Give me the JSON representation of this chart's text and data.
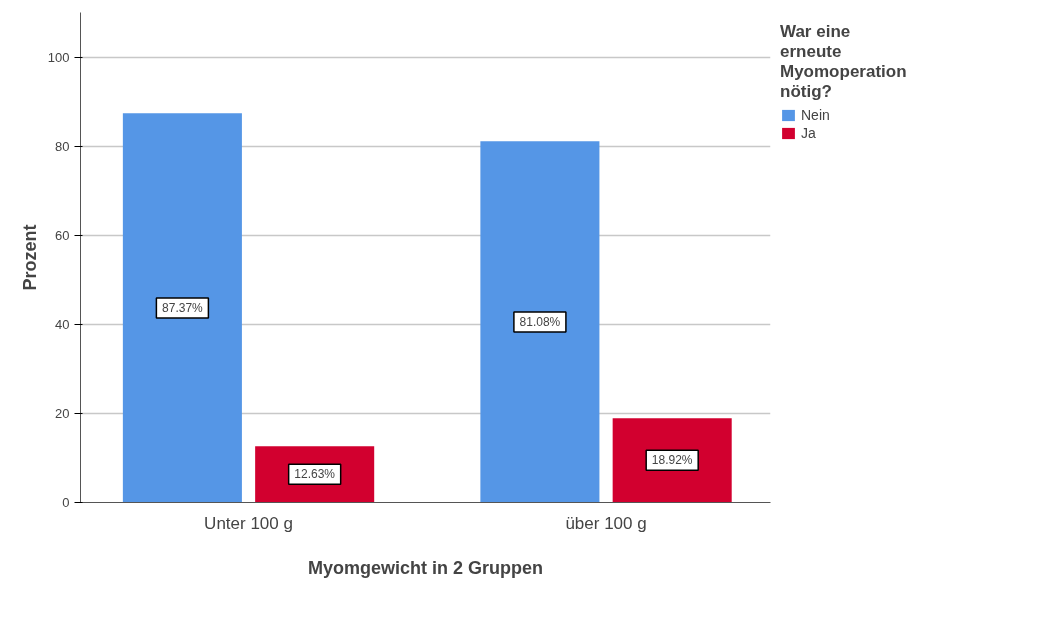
{
  "chart_data": {
    "type": "bar",
    "xlabel": "Myomgewicht in 2 Gruppen",
    "ylabel": "Prozent",
    "legend_title": "War eine erneute Myomoperation nötig?",
    "categories": [
      "Unter 100 g",
      "über 100 g"
    ],
    "series": [
      {
        "name": "Nein",
        "color": "#5596e6",
        "values": [
          87.37,
          81.08
        ],
        "value_labels": [
          "87.37%",
          "81.08%"
        ]
      },
      {
        "name": "Ja",
        "color": "#d2002f",
        "values": [
          12.63,
          18.92
        ],
        "value_labels": [
          "12.63%",
          "18.92%"
        ]
      }
    ],
    "ylim": [
      0,
      110
    ],
    "yticks": [
      0,
      20,
      40,
      60,
      80,
      100
    ],
    "grid": "y",
    "legend": "top right"
  }
}
